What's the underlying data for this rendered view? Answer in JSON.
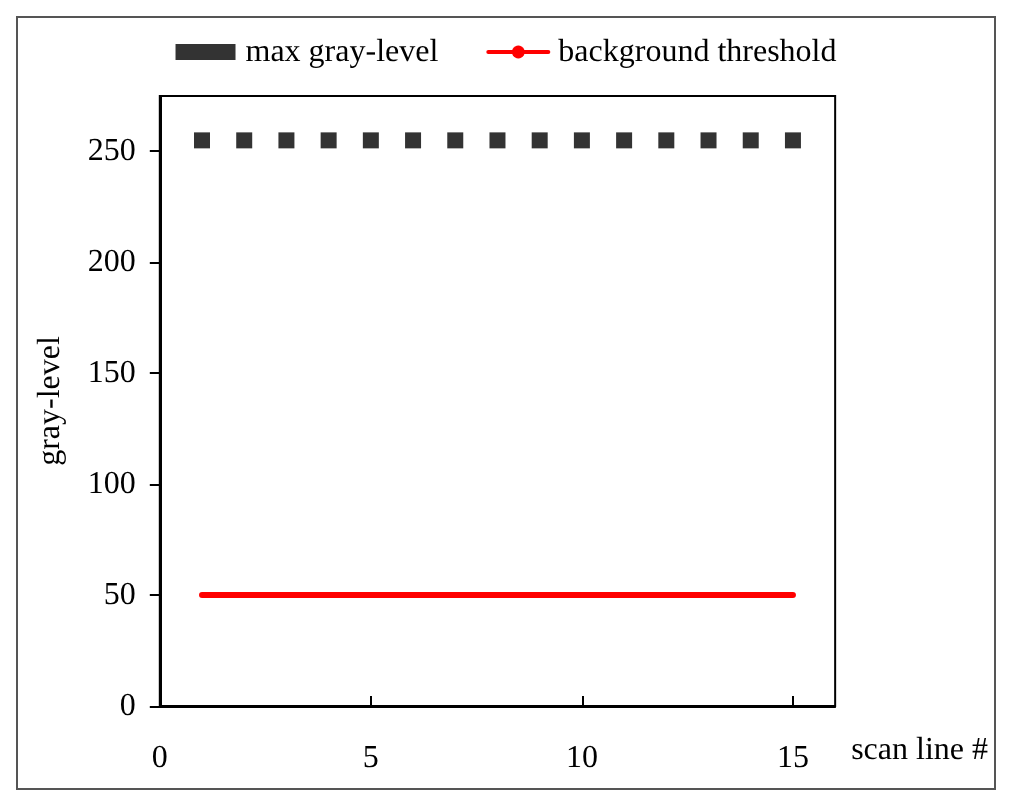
{
  "chart_data": {
    "type": "scatter",
    "xlabel": "scan line #",
    "ylabel": "gray-level",
    "x": [
      1,
      2,
      3,
      4,
      5,
      6,
      7,
      8,
      9,
      10,
      11,
      12,
      13,
      14,
      15
    ],
    "series": [
      {
        "name": "max gray-level",
        "color": "#000000",
        "marker": "square",
        "values": [
          255,
          255,
          255,
          255,
          255,
          255,
          255,
          255,
          255,
          255,
          255,
          255,
          255,
          255,
          255
        ]
      },
      {
        "name": "background threshold",
        "type": "line",
        "color": "#ff0000",
        "marker": "none",
        "line_style": "solid",
        "values": [
          50,
          50,
          50,
          50,
          50,
          50,
          50,
          50,
          50,
          50,
          50,
          50,
          50,
          50,
          50
        ]
      }
    ],
    "xlim": [
      0,
      16
    ],
    "xticks": [
      0,
      5,
      10,
      15
    ],
    "ylim": [
      0,
      275
    ],
    "yticks": [
      0,
      50,
      100,
      150,
      200,
      250
    ],
    "grid": false,
    "legend": "top"
  }
}
